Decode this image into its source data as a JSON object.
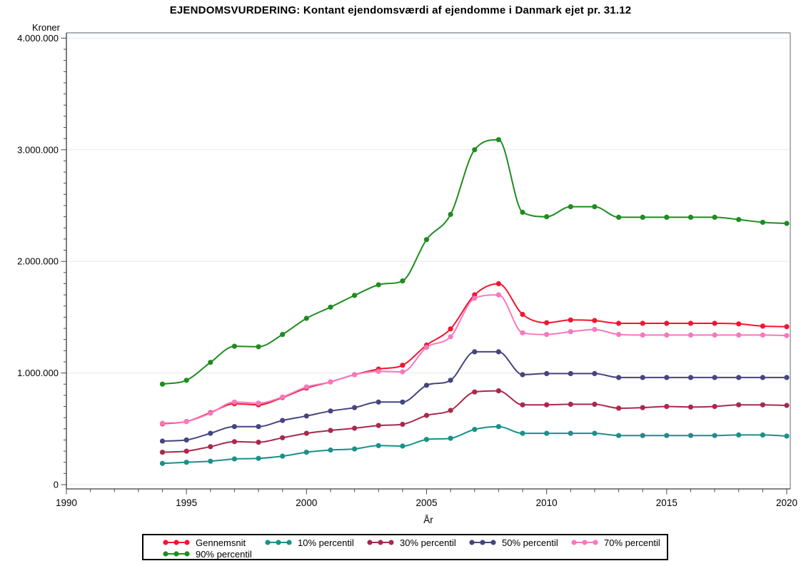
{
  "chart_data": {
    "type": "line",
    "title": "EJENDOMSVURDERING: Kontant ejendomsværdi af ejendomme i Danmark ejet pr. 31.12",
    "ylabel": "Kroner",
    "xlabel": "År",
    "xlim": [
      1990,
      2020
    ],
    "ylim": [
      0,
      4000000
    ],
    "x_major_tick_step": 5,
    "x_minor_tick_step": 1,
    "y_major_tick_step": 1000000,
    "y_minor_tick_step": 100000,
    "x_tick_labels": [
      "1990",
      "1995",
      "2000",
      "2005",
      "2010",
      "2015",
      "2020"
    ],
    "y_tick_labels": [
      "0",
      "1.000.000",
      "2.000.000",
      "3.000.000",
      "4.000.000"
    ],
    "grid": "horizontal-major",
    "legend_position": "bottom",
    "marker": "filled-circle",
    "smooth": true,
    "x": [
      1994,
      1995,
      1996,
      1997,
      1998,
      1999,
      2000,
      2001,
      2002,
      2003,
      2004,
      2005,
      2006,
      2007,
      2008,
      2009,
      2010,
      2011,
      2012,
      2013,
      2014,
      2015,
      2016,
      2017,
      2018,
      2019,
      2020
    ],
    "series": [
      {
        "name": "Gennemsnit",
        "color": "#F0162F",
        "values": [
          545000,
          565000,
          645000,
          725000,
          715000,
          780000,
          865000,
          920000,
          985000,
          1035000,
          1070000,
          1250000,
          1395000,
          1700000,
          1800000,
          1525000,
          1450000,
          1475000,
          1470000,
          1445000,
          1445000,
          1445000,
          1445000,
          1445000,
          1440000,
          1420000,
          1415000
        ]
      },
      {
        "name": "10% percentil",
        "color": "#189189",
        "values": [
          190000,
          200000,
          210000,
          230000,
          235000,
          255000,
          290000,
          310000,
          320000,
          350000,
          345000,
          405000,
          415000,
          495000,
          520000,
          460000,
          460000,
          460000,
          460000,
          440000,
          440000,
          440000,
          440000,
          440000,
          445000,
          445000,
          435000
        ]
      },
      {
        "name": "30% percentil",
        "color": "#A8294C",
        "values": [
          290000,
          300000,
          340000,
          385000,
          380000,
          420000,
          460000,
          485000,
          505000,
          530000,
          540000,
          620000,
          665000,
          830000,
          840000,
          715000,
          715000,
          720000,
          720000,
          685000,
          690000,
          700000,
          695000,
          700000,
          715000,
          715000,
          710000
        ]
      },
      {
        "name": "50% percentil",
        "color": "#454580",
        "values": [
          390000,
          400000,
          460000,
          520000,
          520000,
          575000,
          615000,
          660000,
          690000,
          740000,
          740000,
          890000,
          935000,
          1190000,
          1190000,
          985000,
          995000,
          995000,
          995000,
          960000,
          960000,
          960000,
          960000,
          960000,
          960000,
          960000,
          960000
        ]
      },
      {
        "name": "70% percentil",
        "color": "#F977BE",
        "values": [
          550000,
          565000,
          640000,
          740000,
          730000,
          785000,
          875000,
          920000,
          985000,
          1015000,
          1010000,
          1230000,
          1325000,
          1670000,
          1700000,
          1360000,
          1345000,
          1370000,
          1390000,
          1345000,
          1340000,
          1340000,
          1340000,
          1340000,
          1340000,
          1340000,
          1335000
        ]
      },
      {
        "name": "90% percentil",
        "color": "#1F8C1F",
        "values": [
          900000,
          935000,
          1095000,
          1240000,
          1235000,
          1345000,
          1490000,
          1590000,
          1695000,
          1790000,
          1825000,
          2195000,
          2420000,
          3000000,
          3090000,
          2440000,
          2400000,
          2490000,
          2490000,
          2395000,
          2395000,
          2395000,
          2395000,
          2395000,
          2375000,
          2350000,
          2340000
        ]
      }
    ]
  },
  "colors": {
    "background": "#FFFFFF",
    "axis": "#3A3A3A",
    "frame": "#8E959B",
    "grid": "#E8E8E8",
    "tick": "#4A4A4A",
    "text": "#000000",
    "legend_border": "#000000"
  }
}
